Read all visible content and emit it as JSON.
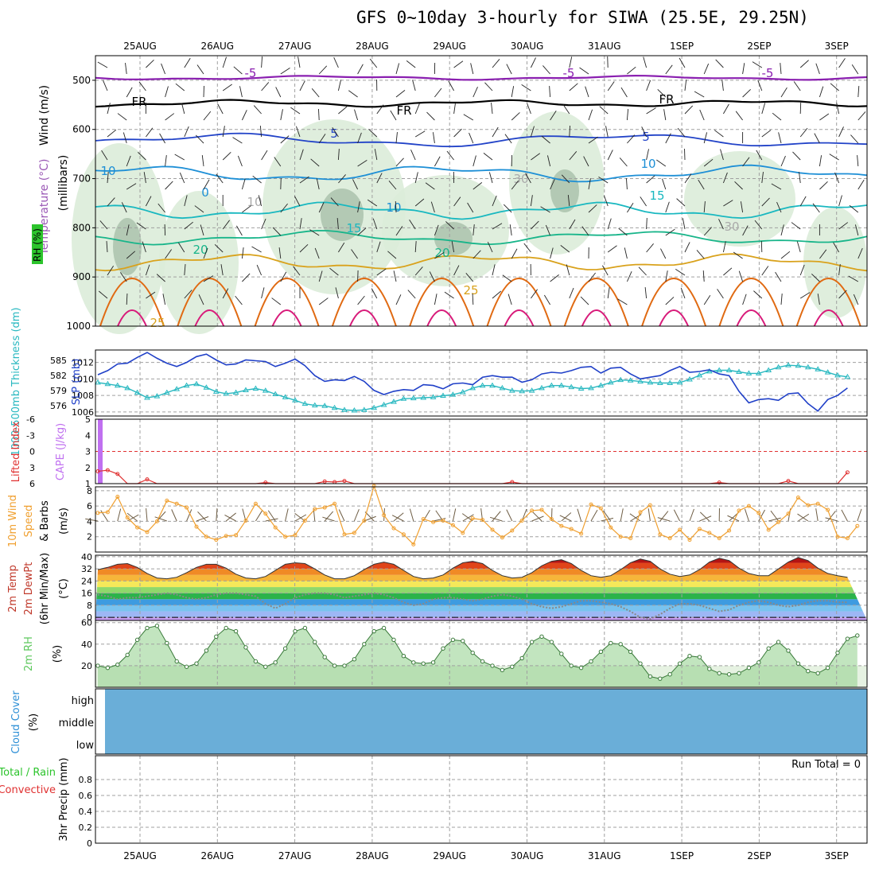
{
  "title": "GFS 0~10day 3-hourly for SIWA (25.5E, 29.25N)",
  "dates": [
    "25AUG",
    "26AUG",
    "27AUG",
    "28AUG",
    "29AUG",
    "30AUG",
    "31AUG",
    "1SEP",
    "2SEP",
    "3SEP"
  ],
  "colors": {
    "frame": "#000000",
    "grid": "#a0a0a0",
    "rh_fill": "#dcecd9",
    "rh_dark": "#9fb9a3",
    "t_m5": "#8a1fb0",
    "t_fr": "#000000",
    "t_5": "#2243c8",
    "t_10": "#1d8fd6",
    "t_15": "#19b8c0",
    "t_20": "#18b58a",
    "t_25": "#d9a21c",
    "t_30": "#e06a12",
    "t_35": "#d81b7a",
    "slp": "#2040c8",
    "thick": "#28b8c0",
    "li": "#e03030",
    "cape": "#c070f0",
    "wind_speed": "#f0a030",
    "barb": "#6e5d44",
    "cloud": "#6aaed8",
    "rh2m": "#5ec85e",
    "dewpt": "#888888"
  },
  "panels": {
    "upper": {
      "ylabel_wind": "Wind (m/s)",
      "ylabel_temp": "Temperature (°C)",
      "ylabel_rh": "RH (%)",
      "ylabel_mb": "(millibars)",
      "levels": [
        "500",
        "600",
        "700",
        "800",
        "900",
        "1000"
      ],
      "contour_labels": [
        "-5",
        "-5",
        "-5",
        "FR",
        "FR",
        "FR",
        "5",
        "5",
        "10",
        "10",
        "10",
        "15",
        "15",
        "20",
        "20",
        "25",
        "25",
        "0",
        "10",
        "30",
        "30"
      ]
    },
    "slp": {
      "ylabel_thick": "1000-500mb Thickness (dm)",
      "ylabel_slp": "SLP (mb)",
      "thick_ticks": [
        "585",
        "582",
        "579",
        "576"
      ],
      "slp_ticks": [
        "1012",
        "1010",
        "1008",
        "1006"
      ]
    },
    "cape": {
      "ylabel_li": "Lifted Index",
      "ylabel_cape": "CAPE (J/kg)",
      "li_ticks": [
        "-6",
        "-3",
        "0",
        "3",
        "6"
      ],
      "cape_ticks": [
        "5",
        "4",
        "3",
        "2",
        "1"
      ]
    },
    "wind10": {
      "ylabel_1": "10m Wind",
      "ylabel_2": "Speed",
      "ylabel_3": "& Barbs",
      "ylabel_units": "(m/s)",
      "ticks": [
        "8",
        "6",
        "4",
        "2"
      ]
    },
    "temp2m": {
      "ylabel_1": "2m Temp",
      "ylabel_2": "2m DewPt",
      "ylabel_3": "(6hr Min/Max)",
      "ylabel_units": "(°C)",
      "ticks": [
        "40",
        "32",
        "24",
        "16",
        "8",
        "0"
      ]
    },
    "rh2m": {
      "ylabel": "2m RH",
      "ylabel_units": "(%)",
      "ticks": [
        "60",
        "40",
        "20"
      ]
    },
    "cloud": {
      "ylabel": "Cloud Cover",
      "ylabel_units": "(%)",
      "levels": [
        "high",
        "middle",
        "low"
      ]
    },
    "precip": {
      "ylabel_1": "Total / Rain",
      "ylabel_2": "Convective",
      "ylabel_3": "3hr Precip (mm)",
      "run_total": "Run Total = 0",
      "ticks": [
        "0.8",
        "0.6",
        "0.4",
        "0.2",
        "0"
      ]
    }
  },
  "chart_data": [
    {
      "type": "line",
      "title": "1000-500mb Thickness (dm)",
      "ylim": [
        574,
        587
      ],
      "values": [
        580.6,
        580.3,
        580.0,
        579.5,
        578.6,
        577.6,
        577.9,
        578.6,
        579.3,
        580.0,
        580.3,
        579.6,
        578.8,
        578.4,
        578.6,
        579.1,
        579.4,
        579.0,
        578.3,
        577.7,
        577.1,
        576.4,
        576.1,
        576.0,
        575.6,
        575.2,
        575.1,
        575.2,
        575.6,
        576.2,
        576.8,
        577.4,
        577.5,
        577.6,
        577.7,
        578.0,
        578.2,
        578.7,
        579.5,
        580.0,
        580.0,
        579.5,
        579.0,
        578.9,
        579.0,
        579.5,
        580.0,
        580.0,
        579.7,
        579.4,
        579.5,
        580.0,
        580.6,
        581.1,
        581.0,
        580.8,
        580.6,
        580.5,
        580.5,
        580.6,
        581.2,
        582.0,
        582.8,
        583.0,
        583.0,
        582.7,
        582.4,
        582.4,
        583.0,
        583.6,
        584.0,
        583.9,
        583.6,
        583.2,
        582.6,
        582.0,
        581.7
      ]
    },
    {
      "type": "line",
      "title": "SLP (mb)",
      "ylim": [
        1005.5,
        1013.5
      ],
      "values": [
        1010.5,
        1011.0,
        1011.8,
        1011.9,
        1012.6,
        1013.2,
        1012.5,
        1011.9,
        1011.5,
        1012.0,
        1012.7,
        1013.0,
        1012.3,
        1011.7,
        1011.8,
        1012.3,
        1012.2,
        1012.1,
        1011.5,
        1011.9,
        1012.4,
        1011.6,
        1010.4,
        1009.7,
        1009.9,
        1009.8,
        1010.3,
        1009.7,
        1008.6,
        1008.1,
        1008.5,
        1008.7,
        1008.6,
        1009.3,
        1009.2,
        1008.8,
        1009.4,
        1009.5,
        1009.3,
        1010.2,
        1010.4,
        1010.2,
        1010.2,
        1009.6,
        1009.9,
        1010.6,
        1010.8,
        1010.7,
        1011.0,
        1011.4,
        1011.5,
        1010.7,
        1011.3,
        1011.4,
        1010.6,
        1010.0,
        1010.2,
        1010.4,
        1011.0,
        1011.5,
        1010.8,
        1010.9,
        1011.1,
        1010.6,
        1010.4,
        1008.5,
        1007.1,
        1007.5,
        1007.6,
        1007.4,
        1008.2,
        1008.3,
        1007.0,
        1006.1,
        1007.5,
        1008.0,
        1008.9
      ]
    },
    {
      "type": "line",
      "title": "Lifted Index",
      "ylim": [
        -6,
        6
      ],
      "values": [
        3.7,
        3.5,
        4.2,
        6,
        6,
        5.2,
        6,
        6,
        6,
        6,
        6,
        6,
        6,
        6,
        6,
        6,
        6,
        5.8,
        6,
        6,
        6,
        6,
        6,
        5.6,
        5.7,
        5.5,
        6,
        6,
        6,
        6,
        6,
        6,
        6,
        6,
        6,
        6,
        6,
        6,
        6,
        6,
        6,
        6,
        5.7,
        6,
        6,
        6,
        6,
        6,
        6,
        6,
        6,
        6,
        6,
        6,
        6,
        6,
        6,
        6,
        6,
        6,
        6,
        6,
        6,
        5.8,
        6,
        6,
        6,
        6,
        6,
        6,
        5.5,
        6,
        6,
        6,
        6,
        6,
        3.9
      ]
    },
    {
      "type": "bar",
      "title": "CAPE (J/kg)",
      "ylim": [
        1,
        5
      ],
      "values": [
        5
      ]
    },
    {
      "type": "line",
      "title": "10m Wind Speed (m/s)",
      "ylim": [
        0,
        8.5
      ],
      "values": [
        5.1,
        5.2,
        7.2,
        4.5,
        3.2,
        2.6,
        4.0,
        6.7,
        6.3,
        5.8,
        3.3,
        2.0,
        1.6,
        2.1,
        2.2,
        4.1,
        6.3,
        5.0,
        3.2,
        2.0,
        2.2,
        4.1,
        5.6,
        5.8,
        6.3,
        2.3,
        2.5,
        4.1,
        8.6,
        4.8,
        3.1,
        2.3,
        1.0,
        4.3,
        3.9,
        4.1,
        3.5,
        2.5,
        4.4,
        4.2,
        2.9,
        1.9,
        2.8,
        4.1,
        5.4,
        5.5,
        4.3,
        3.4,
        3.0,
        2.4,
        6.2,
        5.7,
        3.2,
        2.0,
        1.8,
        5.2,
        6.1,
        2.3,
        1.8,
        2.9,
        1.6,
        3.0,
        2.5,
        1.8,
        2.8,
        5.4,
        6.0,
        5.1,
        2.9,
        3.9,
        5.0,
        7.1,
        6.1,
        6.3,
        5.5,
        2.0,
        1.8,
        3.4
      ]
    },
    {
      "type": "area",
      "title": "2m Temp (°C)",
      "ylim": [
        -2,
        41
      ],
      "values": [
        31.5,
        33.0,
        35.0,
        35.5,
        33.0,
        29.0,
        26.0,
        25.5,
        26.5,
        29.5,
        33.0,
        35.0,
        35.0,
        32.5,
        28.5,
        26.0,
        25.5,
        27.0,
        31.0,
        35.0,
        36.0,
        35.5,
        32.0,
        28.0,
        25.5,
        25.5,
        27.5,
        31.5,
        35.0,
        36.5,
        35.0,
        31.0,
        27.0,
        25.5,
        26.0,
        28.0,
        32.5,
        36.0,
        37.0,
        35.5,
        31.0,
        27.5,
        26.0,
        26.5,
        29.5,
        34.0,
        37.0,
        38.0,
        35.5,
        31.0,
        27.5,
        26.5,
        27.5,
        31.5,
        36.0,
        38.5,
        37.0,
        32.0,
        28.5,
        27.0,
        28.0,
        31.5,
        36.5,
        39.0,
        37.5,
        32.5,
        29.0,
        27.5,
        27.5,
        32.0,
        36.5,
        39.5,
        37.5,
        32.5,
        29.0,
        27.5,
        26.5
      ]
    },
    {
      "type": "line",
      "title": "2m DewPt (°C)",
      "ylim": [
        -2,
        41
      ],
      "values": [
        15,
        14,
        12,
        13,
        13,
        14,
        15,
        16,
        15,
        13,
        12,
        13,
        15,
        16,
        16,
        15,
        14,
        9,
        6,
        9,
        13,
        15,
        16,
        16,
        15,
        13,
        14,
        15,
        16,
        15,
        13,
        10,
        8,
        9,
        12,
        13,
        13,
        12,
        11,
        12,
        14,
        15,
        14,
        12,
        9,
        7,
        6,
        7,
        9,
        11,
        11,
        10,
        9,
        7,
        4,
        0,
        -1,
        2,
        6,
        9,
        9,
        8,
        6,
        4,
        5,
        8,
        10,
        11,
        10,
        8,
        7,
        8,
        10,
        11,
        11,
        10,
        10
      ]
    },
    {
      "type": "area",
      "title": "2m RH (%)",
      "ylim": [
        0,
        62
      ],
      "values": [
        20,
        18,
        21,
        30,
        44,
        55,
        57,
        41,
        24,
        19,
        22,
        34,
        47,
        55,
        52,
        37,
        24,
        19,
        23,
        36,
        52,
        55,
        42,
        28,
        20,
        20,
        26,
        40,
        52,
        55,
        44,
        29,
        23,
        22,
        23,
        36,
        44,
        43,
        32,
        24,
        20,
        16,
        19,
        27,
        42,
        47,
        42,
        31,
        20,
        18,
        24,
        33,
        41,
        40,
        33,
        22,
        10,
        8,
        12,
        22,
        29,
        28,
        17,
        13,
        12,
        13,
        18,
        23,
        36,
        42,
        34,
        22,
        15,
        13,
        18,
        32,
        45,
        48
      ]
    },
    {
      "type": "line",
      "title": "3hr Precip (mm)",
      "ylim": [
        0,
        1
      ],
      "values": [
        0,
        0,
        0,
        0,
        0,
        0,
        0,
        0,
        0,
        0
      ]
    }
  ]
}
